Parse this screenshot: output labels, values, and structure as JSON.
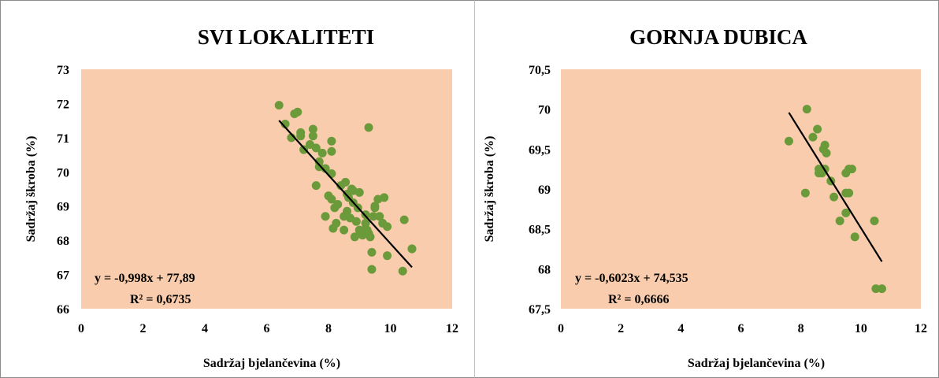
{
  "chart_data": [
    {
      "type": "scatter",
      "title": "SVI LOKALITETI",
      "xlabel": "Sadržaj  bjelančevina  (%)",
      "ylabel": "Sadržaj  škroba  (%)",
      "xlim": [
        0,
        12
      ],
      "ylim": [
        66,
        73
      ],
      "xticks": [
        0,
        2,
        4,
        6,
        8,
        10,
        12
      ],
      "yticks": [
        66,
        67,
        68,
        69,
        70,
        71,
        72,
        73
      ],
      "ytick_labels": [
        "66",
        "67",
        "68",
        "69",
        "70",
        "71",
        "72",
        "73"
      ],
      "grid": false,
      "plot_background": "#f8ccac",
      "marker_color": "#6b9a3a",
      "line_color": "#000000",
      "trendline": {
        "slope": -0.998,
        "intercept": 77.89,
        "x_range": [
          6.4,
          10.7
        ]
      },
      "equation": "y = -0,998x + 77,89",
      "r_squared": "R² = 0,6735",
      "x": [
        6.4,
        6.6,
        6.8,
        6.9,
        7.0,
        7.1,
        7.1,
        7.2,
        7.4,
        7.5,
        7.5,
        7.6,
        7.6,
        7.7,
        7.7,
        7.8,
        7.9,
        7.9,
        8.0,
        8.1,
        8.1,
        8.1,
        8.1,
        8.15,
        8.2,
        8.25,
        8.3,
        8.4,
        8.5,
        8.5,
        8.55,
        8.6,
        8.6,
        8.65,
        8.7,
        8.75,
        8.8,
        8.8,
        8.85,
        8.9,
        8.95,
        9.0,
        9.0,
        9.05,
        9.1,
        9.15,
        9.2,
        9.2,
        9.25,
        9.3,
        9.3,
        9.35,
        9.4,
        9.4,
        9.45,
        9.5,
        9.5,
        9.6,
        9.65,
        9.75,
        9.8,
        9.9,
        9.9,
        10.4,
        10.45,
        10.7
      ],
      "y": [
        71.95,
        71.4,
        71.0,
        71.7,
        71.75,
        71.05,
        71.15,
        70.65,
        70.8,
        71.25,
        71.05,
        69.6,
        70.7,
        70.15,
        70.3,
        70.55,
        70.1,
        68.7,
        69.3,
        70.9,
        70.6,
        69.95,
        69.2,
        68.35,
        68.95,
        68.5,
        69.05,
        69.6,
        68.3,
        68.7,
        69.7,
        68.85,
        69.35,
        69.25,
        68.65,
        69.5,
        69.45,
        69.1,
        68.1,
        68.55,
        68.95,
        69.4,
        68.3,
        68.2,
        68.15,
        68.3,
        68.5,
        68.75,
        68.3,
        68.2,
        71.3,
        68.1,
        67.15,
        67.65,
        68.7,
        69.0,
        68.95,
        69.2,
        68.7,
        68.5,
        69.25,
        67.55,
        68.4,
        67.1,
        68.6,
        67.75
      ],
      "extra_points": [
        {
          "x": 10.7,
          "y": 67.75
        }
      ]
    },
    {
      "type": "scatter",
      "title": "GORNJA DUBICA",
      "xlabel": "Sadržaj  bjelančevina  (%)",
      "ylabel": "Sadržaj  škroba  (%)",
      "xlim": [
        0,
        12
      ],
      "ylim": [
        67.5,
        70.5
      ],
      "xticks": [
        0,
        2,
        4,
        6,
        8,
        10,
        12
      ],
      "yticks": [
        67.5,
        68,
        68.5,
        69,
        69.5,
        70,
        70.5
      ],
      "ytick_labels": [
        "67,5",
        "68",
        "68,5",
        "69",
        "69,5",
        "70",
        "70,5"
      ],
      "grid": false,
      "plot_background": "#f8ccac",
      "marker_color": "#6b9a3a",
      "line_color": "#000000",
      "trendline": {
        "slope": -0.6023,
        "intercept": 74.535,
        "x_range": [
          7.6,
          10.7
        ]
      },
      "equation": "y = -0,6023x + 74,535",
      "r_squared": "R² = 0,6666",
      "x": [
        7.6,
        8.15,
        8.2,
        8.4,
        8.55,
        8.6,
        8.6,
        8.7,
        8.75,
        8.8,
        8.8,
        8.85,
        9.0,
        9.1,
        9.3,
        9.5,
        9.5,
        9.5,
        9.6,
        9.6,
        9.7,
        9.8,
        10.45,
        10.5,
        10.7
      ],
      "y": [
        69.6,
        68.95,
        70.0,
        69.65,
        69.75,
        69.25,
        69.2,
        69.2,
        69.5,
        69.55,
        69.25,
        69.45,
        69.1,
        68.9,
        68.6,
        68.7,
        68.95,
        69.2,
        68.95,
        69.25,
        69.25,
        68.4,
        68.6,
        67.75,
        67.75
      ]
    }
  ]
}
